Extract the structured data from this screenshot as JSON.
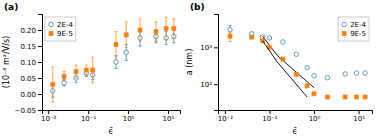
{
  "chart_data": [
    {
      "type": "scatter",
      "title": "(a)",
      "xlabel": "ϵ̄",
      "ylabel": "(10⁻⁸ m²/V/s)",
      "log": "x",
      "grid": false,
      "legend": "upper left",
      "xlim": [
        0.007,
        20
      ],
      "ylim": [
        -0.05,
        0.25
      ],
      "xticks": [
        {
          "value": 0.01,
          "label": "10⁻²"
        },
        {
          "value": 0.1,
          "label": "10⁻¹"
        },
        {
          "value": 1,
          "label": "10⁰"
        },
        {
          "value": 10,
          "label": "10¹"
        }
      ],
      "yticks": [
        {
          "value": -0.05,
          "label": "−0.05"
        },
        {
          "value": 0.0,
          "label": "0.00"
        },
        0.05,
        {
          "value": 0.1,
          "label": "0.10"
        },
        0.15,
        {
          "value": 0.2,
          "label": "0.20"
        }
      ],
      "series": [
        {
          "name": "2E-4",
          "marker": "circle-open",
          "x": [
            0.013,
            0.025,
            0.05,
            0.09,
            0.13,
            0.5,
            0.9,
            2.0,
            5.0,
            9.0,
            14.0
          ],
          "values": [
            0.01,
            0.035,
            0.05,
            0.065,
            0.06,
            0.1,
            0.13,
            0.175,
            0.18,
            0.175,
            0.18
          ],
          "yerr": [
            0.02,
            0.01,
            0.015,
            0.01,
            0.015,
            0.02,
            0.025,
            0.025,
            0.02,
            0.02,
            0.02
          ]
        },
        {
          "name": "9E-5",
          "marker": "square",
          "x": [
            0.013,
            0.025,
            0.05,
            0.09,
            0.13,
            0.5,
            0.9,
            2.0,
            5.0,
            9.0,
            14.0
          ],
          "values": [
            0.03,
            0.055,
            0.07,
            0.075,
            0.075,
            0.155,
            0.185,
            0.2,
            0.195,
            0.205,
            0.205
          ],
          "yerr": [
            0.055,
            0.015,
            0.02,
            0.015,
            0.04,
            0.04,
            0.04,
            0.035,
            0.03,
            0.035,
            0.03
          ]
        }
      ]
    },
    {
      "type": "scatter",
      "title": "(b)",
      "xlabel": "ϵ̄",
      "ylabel": "a (nm)",
      "log": true,
      "grid": false,
      "legend": "upper right",
      "xlim": [
        0.007,
        20
      ],
      "ylim": [
        20,
        8000
      ],
      "xticks": [
        {
          "value": 0.01,
          "label": "10⁻²"
        },
        {
          "value": 0.1,
          "label": "10⁻¹"
        },
        {
          "value": 1,
          "label": "10⁰"
        },
        {
          "value": 10,
          "label": "10¹"
        }
      ],
      "yticks": [
        {
          "value": 100,
          "label": "10²"
        },
        {
          "value": 1000,
          "label": "10³"
        }
      ],
      "series": [
        {
          "name": "2E-4",
          "marker": "circle-open",
          "x": [
            0.013,
            0.04,
            0.07,
            0.1,
            0.2,
            0.4,
            0.7,
            1.0,
            2.0,
            5.0,
            9.0,
            14.0
          ],
          "values": [
            3000,
            2300,
            1900,
            1800,
            1400,
            650,
            280,
            170,
            150,
            190,
            200,
            200
          ],
          "yerr": [
            900,
            276,
            152,
            126,
            84,
            39,
            14,
            8.5,
            6,
            7.6,
            8,
            8
          ]
        },
        {
          "type": "line",
          "color": "black",
          "x": [
            0.07,
            0.15,
            1.0
          ],
          "values": [
            2000,
            600,
            80
          ]
        },
        {
          "name": "9E-5",
          "marker": "square",
          "x": [
            0.013,
            0.04,
            0.07,
            0.1,
            0.2,
            0.4,
            0.7,
            1.0,
            2.0,
            5.0,
            9.0,
            14.0
          ],
          "values": [
            2000,
            1900,
            1500,
            1000,
            480,
            185,
            90,
            55,
            45,
            45,
            45,
            45
          ],
          "yerr": [
            560,
            190,
            120,
            60,
            24,
            9.25,
            3.6,
            2.2,
            1.8,
            1.8,
            1.8,
            1.8
          ]
        },
        {
          "type": "line",
          "color": "black",
          "x": [
            0.07,
            0.15,
            0.7
          ],
          "values": [
            1500,
            400,
            45
          ]
        }
      ]
    }
  ]
}
